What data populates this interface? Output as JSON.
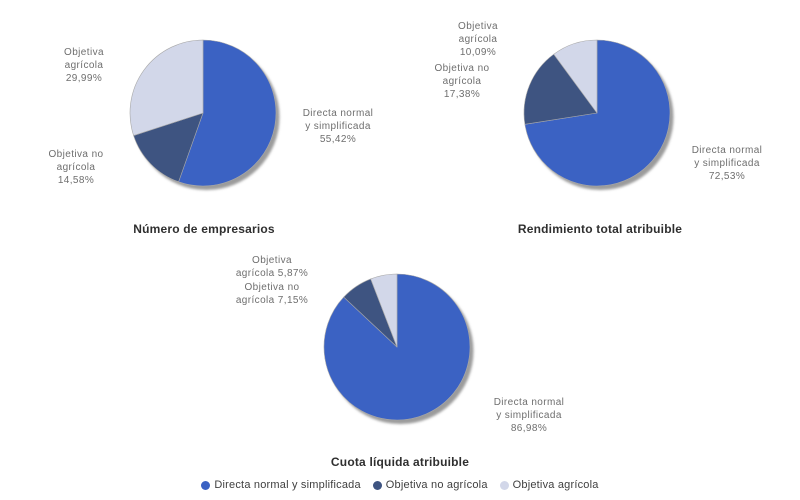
{
  "colors": {
    "slice_colors": [
      "#3b62c3",
      "#3e5481",
      "#d2d7e9"
    ],
    "shadow": "#9b9b9b",
    "slice_border": "#a9a9a9",
    "label_text": "#6e6e6e",
    "title_text": "#2f2f2f"
  },
  "legend": {
    "items": [
      {
        "label": "Directa normal y simplificada",
        "color": "#3b62c3"
      },
      {
        "label": "Objetiva no agrícola",
        "color": "#3e5481"
      },
      {
        "label": "Objetiva agrícola",
        "color": "#d2d7e9"
      }
    ]
  },
  "chart_data": [
    {
      "type": "pie",
      "title": "Número de empresarios",
      "categories": [
        "Directa normal y simplificada",
        "Objetiva no agrícola",
        "Objetiva agrícola"
      ],
      "values": [
        55.42,
        14.58,
        29.99
      ],
      "legend_position": "bottom",
      "slice_labels": {
        "directa": "Directa normal\ny simplificada\n55,42%",
        "objetiva_no": "Objetiva no\nagrícola\n14,58%",
        "objetiva_agricola": "Objetiva\nagrícola\n29,99%"
      }
    },
    {
      "type": "pie",
      "title": "Rendimiento total atribuible",
      "categories": [
        "Directa normal y simplificada",
        "Objetiva no agrícola",
        "Objetiva agrícola"
      ],
      "values": [
        72.53,
        17.38,
        10.09
      ],
      "legend_position": "bottom",
      "slice_labels": {
        "directa": "Directa normal\ny simplificada\n72,53%",
        "objetiva_no": "Objetiva no\nagrícola\n17,38%",
        "objetiva_agricola": "Objetiva\nagrícola\n10,09%"
      }
    },
    {
      "type": "pie",
      "title": "Cuota líquida atribuible",
      "categories": [
        "Directa normal y simplificada",
        "Objetiva no agrícola",
        "Objetiva agrícola"
      ],
      "values": [
        86.98,
        7.15,
        5.87
      ],
      "legend_position": "bottom",
      "slice_labels": {
        "directa": "Directa normal\ny simplificada\n86,98%",
        "objetiva_no": "Objetiva no\nagrícola 7,15%",
        "objetiva_agricola": "Objetiva\nagrícola 5,87%"
      }
    }
  ]
}
